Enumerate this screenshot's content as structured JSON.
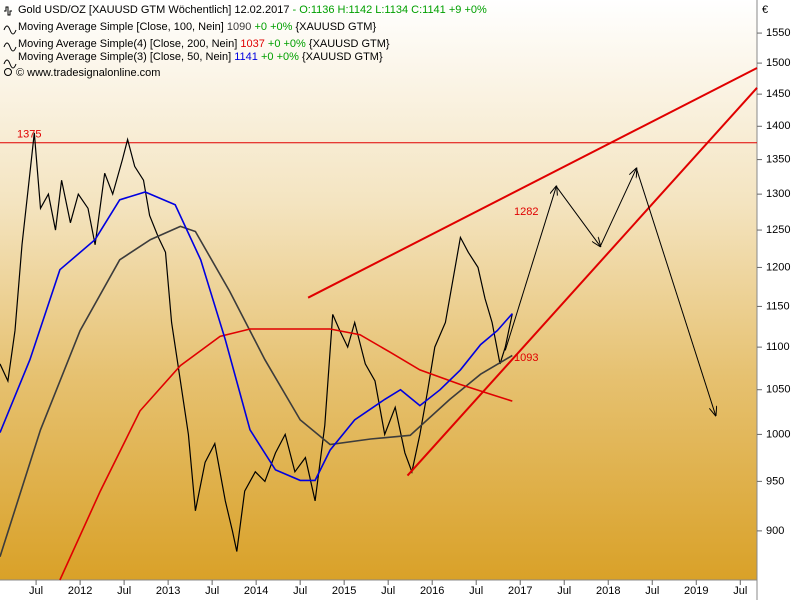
{
  "chart_data": {
    "type": "line",
    "log_scale": true,
    "currency": "€",
    "watermark": "© www.tradesignalonline.com",
    "xlim": [
      2011.09,
      2019.69
    ],
    "xticks": [
      {
        "value": 2011.5,
        "label": "Jul"
      },
      2012,
      {
        "value": 2012.5,
        "label": "Jul"
      },
      2013,
      {
        "value": 2013.5,
        "label": "Jul"
      },
      2014,
      {
        "value": 2014.5,
        "label": "Jul"
      },
      2015,
      {
        "value": 2015.5,
        "label": "Jul"
      },
      2016,
      {
        "value": 2016.5,
        "label": "Jul"
      },
      2017,
      {
        "value": 2017.5,
        "label": "Jul"
      },
      2018,
      {
        "value": 2018.5,
        "label": "Jul"
      },
      2019,
      {
        "value": 2019.5,
        "label": "Jul"
      }
    ],
    "ylim": [
      853,
      1607
    ],
    "yticks": [
      900,
      950,
      1000,
      1050,
      1100,
      1150,
      1200,
      1250,
      1300,
      1350,
      1400,
      1450,
      1500,
      1550
    ],
    "series": [
      {
        "name": "Gold USD/OZ [XAUUSD GTM  Wöchentlich] 12.02.2017",
        "quote": "- O:1136 H:1142 L:1134 C:1141 +9 +0%",
        "color": "#000000",
        "x": [
          2011.09,
          2011.18,
          2011.26,
          2011.34,
          2011.43,
          2011.48,
          2011.55,
          2011.64,
          2011.72,
          2011.79,
          2011.89,
          2011.98,
          2012.09,
          2012.17,
          2012.28,
          2012.37,
          2012.48,
          2012.54,
          2012.62,
          2012.72,
          2012.79,
          2012.89,
          2012.97,
          2013.04,
          2013.14,
          2013.23,
          2013.31,
          2013.42,
          2013.53,
          2013.65,
          2013.73,
          2013.78,
          2013.87,
          2013.99,
          2014.1,
          2014.22,
          2014.33,
          2014.44,
          2014.56,
          2014.67,
          2014.78,
          2014.87,
          2014.95,
          2015.04,
          2015.12,
          2015.24,
          2015.35,
          2015.46,
          2015.58,
          2015.69,
          2015.77,
          2015.86,
          2015.95,
          2016.03,
          2016.15,
          2016.23,
          2016.32,
          2016.41,
          2016.52,
          2016.6,
          2016.68,
          2016.77,
          2016.83,
          2016.91
        ],
        "values": [
          1080,
          1060,
          1120,
          1230,
          1330,
          1390,
          1280,
          1300,
          1250,
          1320,
          1260,
          1300,
          1280,
          1230,
          1330,
          1300,
          1350,
          1380,
          1340,
          1320,
          1270,
          1240,
          1220,
          1130,
          1060,
          1000,
          920,
          970,
          990,
          930,
          900,
          880,
          940,
          960,
          950,
          980,
          1000,
          960,
          975,
          930,
          1010,
          1140,
          1120,
          1100,
          1130,
          1080,
          1060,
          1000,
          1030,
          980,
          960,
          1000,
          1050,
          1100,
          1130,
          1180,
          1240,
          1220,
          1200,
          1160,
          1130,
          1080,
          1100,
          1141
        ]
      },
      {
        "name": "Moving Average Simple [Close, 100, Nein]",
        "last": 1090,
        "change": "+0 +0%",
        "symbol": "{XAUUSD GTM}",
        "color": "#3c3c3c",
        "x": [
          2011.09,
          2011.55,
          2012.0,
          2012.45,
          2012.8,
          2013.14,
          2013.31,
          2013.7,
          2014.1,
          2014.5,
          2014.84,
          2015.3,
          2015.75,
          2016.2,
          2016.55,
          2016.91
        ],
        "values": [
          875,
          1005,
          1120,
          1210,
          1237,
          1255,
          1248,
          1169,
          1085,
          1016,
          989,
          995,
          999,
          1039,
          1068,
          1090
        ]
      },
      {
        "name": "Moving Average Simple(4) [Close, 200, Nein]",
        "last": 1037,
        "change": "+0 +0%",
        "symbol": "{XAUUSD GTM}",
        "color": "#e00000",
        "x": [
          2011.77,
          2012.23,
          2012.68,
          2013.14,
          2013.59,
          2013.93,
          2014.39,
          2014.84,
          2015.18,
          2015.52,
          2015.86,
          2016.32,
          2016.66,
          2016.91
        ],
        "values": [
          853,
          940,
          1026,
          1078,
          1113,
          1122,
          1122,
          1122,
          1115,
          1094,
          1073,
          1056,
          1045,
          1037
        ]
      },
      {
        "name": "Moving Average Simple(3) [Close, 50, Nein]",
        "last": 1141,
        "change": "+0 +0%",
        "symbol": "{XAUUSD GTM}",
        "color": "#0000e0",
        "x": [
          2011.09,
          2011.43,
          2011.77,
          2012.17,
          2012.45,
          2012.74,
          2013.08,
          2013.37,
          2013.65,
          2013.93,
          2014.22,
          2014.5,
          2014.67,
          2014.84,
          2015.12,
          2015.46,
          2015.64,
          2015.86,
          2016.09,
          2016.32,
          2016.55,
          2016.74,
          2016.91
        ],
        "values": [
          1002,
          1085,
          1197,
          1237,
          1292,
          1303,
          1285,
          1210,
          1109,
          1005,
          962,
          951,
          951,
          983,
          1016,
          1039,
          1050,
          1032,
          1050,
          1073,
          1103,
          1120,
          1141
        ]
      }
    ],
    "hline": {
      "value": 1375,
      "color": "#e00000"
    },
    "trend_lines": [
      {
        "color": "#e00000",
        "x": [
          2014.59,
          2019.69
        ],
        "values": [
          1161,
          1492
        ]
      },
      {
        "color": "#e00000",
        "x": [
          2015.72,
          2019.69
        ],
        "values": [
          956,
          1460
        ]
      }
    ],
    "projection": {
      "color": "#000000",
      "x": [
        2016.83,
        2017.41,
        2017.91,
        2018.32,
        2019.22
      ],
      "values": [
        1096,
        1311,
        1228,
        1337,
        1021
      ]
    },
    "annotations": [
      {
        "value": 1282,
        "color": "#e00000"
      },
      {
        "value": 1093,
        "color": "#e00000"
      }
    ]
  }
}
